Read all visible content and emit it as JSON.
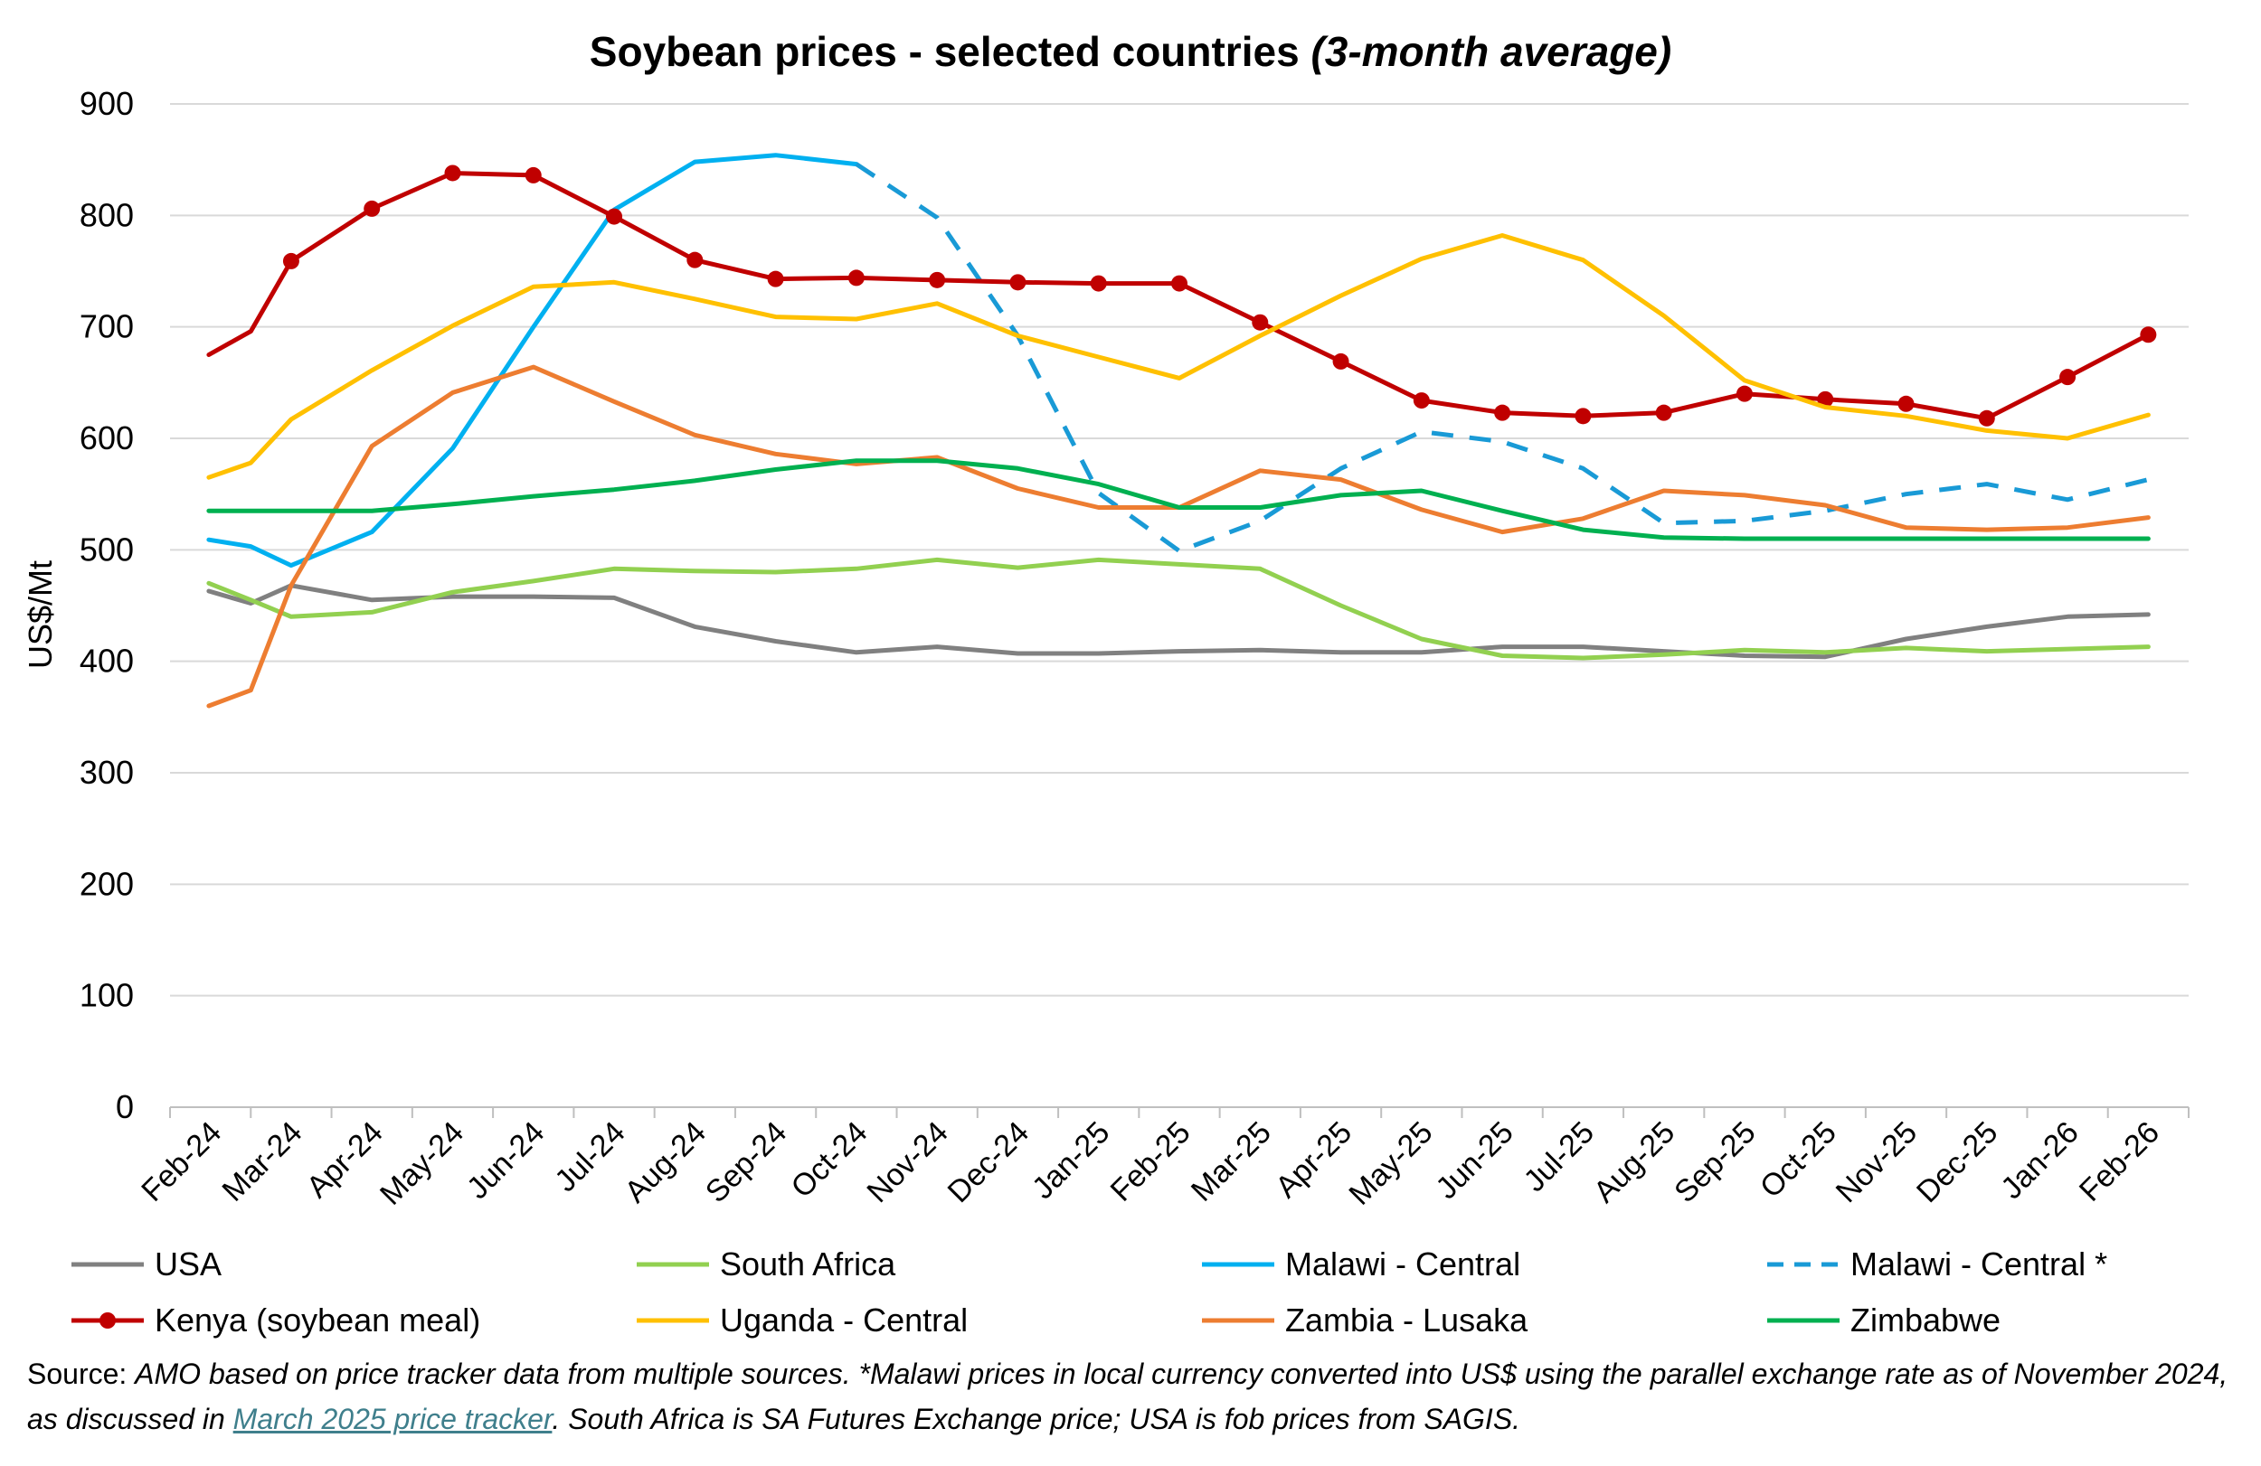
{
  "chart_data": {
    "type": "line",
    "title": "Soybean prices - selected countries",
    "title_suffix": "(3-month average)",
    "xlabel": "",
    "ylabel": "US$/Mt",
    "ylim": [
      0,
      900
    ],
    "yticks": [
      0,
      100,
      200,
      300,
      400,
      500,
      600,
      700,
      800,
      900
    ],
    "grid": true,
    "legend_position": "bottom",
    "categories": [
      "Feb-24",
      "Mar-24",
      "Apr-24",
      "May-24",
      "Jun-24",
      "Jul-24",
      "Aug-24",
      "Sep-24",
      "Oct-24",
      "Nov-24",
      "Dec-24",
      "Jan-25",
      "Feb-25",
      "Mar-25",
      "Apr-25",
      "May-25",
      "Jun-25",
      "Jul-25",
      "Aug-25",
      "Sep-25",
      "Oct-25",
      "Nov-25",
      "Dec-25",
      "Jan-26",
      "Feb-26"
    ],
    "series": [
      {
        "name": "USA",
        "color": "#808080",
        "dash": false,
        "markers": false,
        "x": [
          -0.02,
          0.5,
          1,
          2,
          3,
          4,
          5,
          6,
          7,
          8,
          9,
          10,
          11,
          12,
          13,
          14,
          15,
          16,
          17,
          18,
          19,
          20,
          21,
          22,
          23,
          24
        ],
        "values": [
          463,
          452,
          468,
          455,
          458,
          458,
          457,
          431,
          418,
          408,
          413,
          407,
          407,
          409,
          410,
          408,
          408,
          413,
          413,
          409,
          405,
          404,
          420,
          431,
          440,
          442
        ]
      },
      {
        "name": "South Africa",
        "color": "#92d050",
        "dash": false,
        "markers": false,
        "x": [
          -0.02,
          0.5,
          1,
          2,
          3,
          4,
          5,
          6,
          7,
          8,
          9,
          10,
          11,
          12,
          13,
          14,
          15,
          16,
          17,
          18,
          19,
          20,
          21,
          22,
          23,
          24
        ],
        "values": [
          470,
          455,
          440,
          444,
          462,
          472,
          483,
          481,
          480,
          483,
          491,
          484,
          491,
          487,
          483,
          450,
          420,
          405,
          403,
          406,
          410,
          408,
          412,
          409,
          411,
          413
        ]
      },
      {
        "name": "Malawi - Central",
        "color": "#00b0f0",
        "dash": false,
        "markers": false,
        "x": [
          -0.02,
          0.5,
          1,
          2,
          3,
          4,
          5,
          6,
          7,
          8
        ],
        "values": [
          509,
          503,
          486,
          516,
          591,
          700,
          805,
          848,
          854,
          846
        ]
      },
      {
        "name": "Malawi - Central *",
        "color": "#199ad6",
        "dash": true,
        "markers": false,
        "x": [
          8,
          9,
          10,
          11,
          12,
          13,
          14,
          15,
          16,
          17,
          18,
          19,
          20,
          21,
          22,
          23,
          24
        ],
        "values": [
          846,
          798,
          692,
          551,
          499,
          526,
          573,
          606,
          597,
          573,
          524,
          526,
          535,
          550,
          559,
          545,
          563
        ]
      },
      {
        "name": "Kenya (soybean meal)",
        "color": "#c00000",
        "dash": false,
        "markers": true,
        "x": [
          -0.02,
          0.5,
          1,
          2,
          3,
          4,
          5,
          6,
          7,
          8,
          9,
          10,
          11,
          12,
          13,
          14,
          15,
          16,
          17,
          18,
          19,
          20,
          21,
          22,
          23,
          24
        ],
        "values": [
          675,
          696,
          759,
          806,
          838,
          836,
          799,
          760,
          743,
          744,
          742,
          740,
          739,
          739,
          704,
          669,
          634,
          623,
          620,
          623,
          640,
          635,
          631,
          618,
          655,
          693
        ]
      },
      {
        "name": "Uganda - Central",
        "color": "#ffc000",
        "dash": false,
        "markers": false,
        "x": [
          -0.02,
          0.5,
          1,
          2,
          3,
          4,
          5,
          6,
          7,
          8,
          9,
          10,
          11,
          12,
          13,
          14,
          15,
          16,
          17,
          18,
          19,
          20,
          21,
          22,
          23,
          24
        ],
        "values": [
          565,
          578,
          617,
          661,
          701,
          736,
          740,
          725,
          709,
          707,
          721,
          692,
          673,
          654,
          692,
          728,
          761,
          782,
          760,
          710,
          652,
          628,
          620,
          607,
          600,
          621
        ]
      },
      {
        "name": "Zambia - Lusaka",
        "color": "#ed7d31",
        "dash": false,
        "markers": false,
        "x": [
          -0.02,
          0.5,
          1,
          2,
          3,
          4,
          5,
          6,
          7,
          8,
          9,
          10,
          11,
          12,
          13,
          14,
          15,
          16,
          17,
          18,
          19,
          20,
          21,
          22,
          23,
          24
        ],
        "values": [
          360,
          374,
          468,
          593,
          641,
          664,
          633,
          603,
          586,
          577,
          583,
          555,
          538,
          538,
          571,
          563,
          536,
          516,
          528,
          553,
          549,
          540,
          520,
          518,
          520,
          529
        ]
      },
      {
        "name": "Zimbabwe",
        "color": "#00b050",
        "dash": false,
        "markers": false,
        "x": [
          -0.02,
          0.5,
          1,
          2,
          3,
          4,
          5,
          6,
          7,
          8,
          9,
          10,
          11,
          12,
          13,
          14,
          15,
          16,
          17,
          18,
          19,
          20,
          21,
          22,
          23,
          24
        ],
        "values": [
          535,
          535,
          535,
          535,
          541,
          548,
          554,
          562,
          572,
          580,
          580,
          573,
          559,
          538,
          538,
          549,
          553,
          535,
          518,
          511,
          510,
          510,
          510,
          510,
          510,
          510
        ]
      }
    ]
  },
  "source": {
    "label": "Source:",
    "text1": "AMO based on price tracker data from multiple sources. *Malawi prices in local currency converted into US$ using the parallel exchange rate as of November 2024, as discussed in",
    "link": "March 2025 price tracker",
    "text2": ". South Africa is SA Futures Exchange price; USA is fob prices from SAGIS."
  }
}
